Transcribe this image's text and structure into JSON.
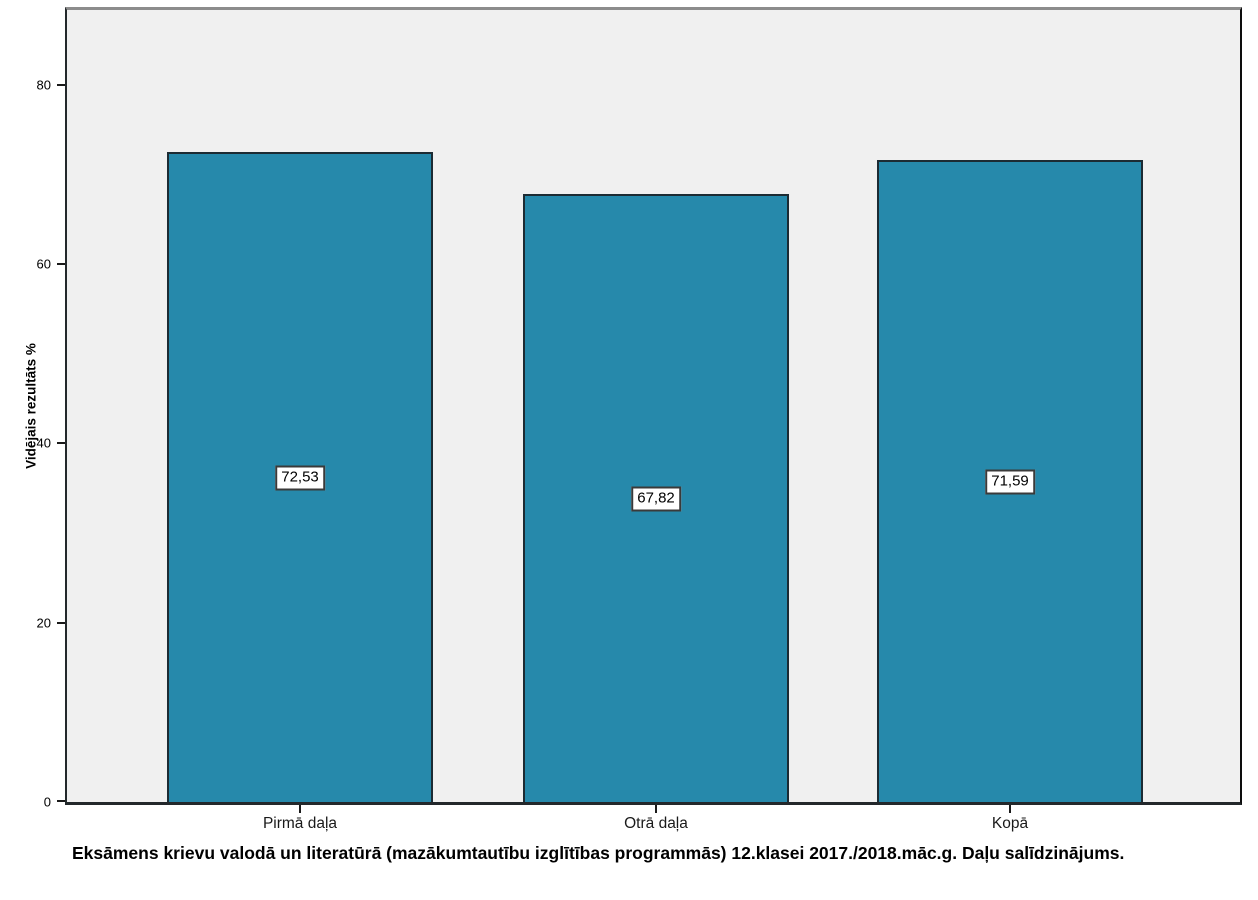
{
  "chart_data": {
    "type": "bar",
    "categories": [
      "Pirmā daļa",
      "Otrā daļa",
      "Kopā"
    ],
    "values": [
      72.53,
      67.82,
      71.59
    ],
    "value_labels": [
      "72,53",
      "67,82",
      "71,59"
    ],
    "title": "Eksāmens krievu valodā un literatūrā (mazākumtautību izglītības programmās) 12.klasei 2017./2018.māc.g. Daļu salīdzinājums.",
    "xlabel": "",
    "ylabel": "Vidējais rezultāts %",
    "yticks": [
      0,
      20,
      40,
      60,
      80
    ],
    "ylim": [
      0,
      88.4
    ],
    "grid": false,
    "legend": "none",
    "colors": {
      "bar_fill": "#2689ab",
      "bar_border": "#1c2b33",
      "plot_background": "#f0f0f0",
      "axis_line": "#1a1a1a",
      "top_frame": "#8c8c8c",
      "label_box_background": "#ffffff",
      "label_box_border": "#3a3a3a",
      "text": "#000000"
    }
  }
}
